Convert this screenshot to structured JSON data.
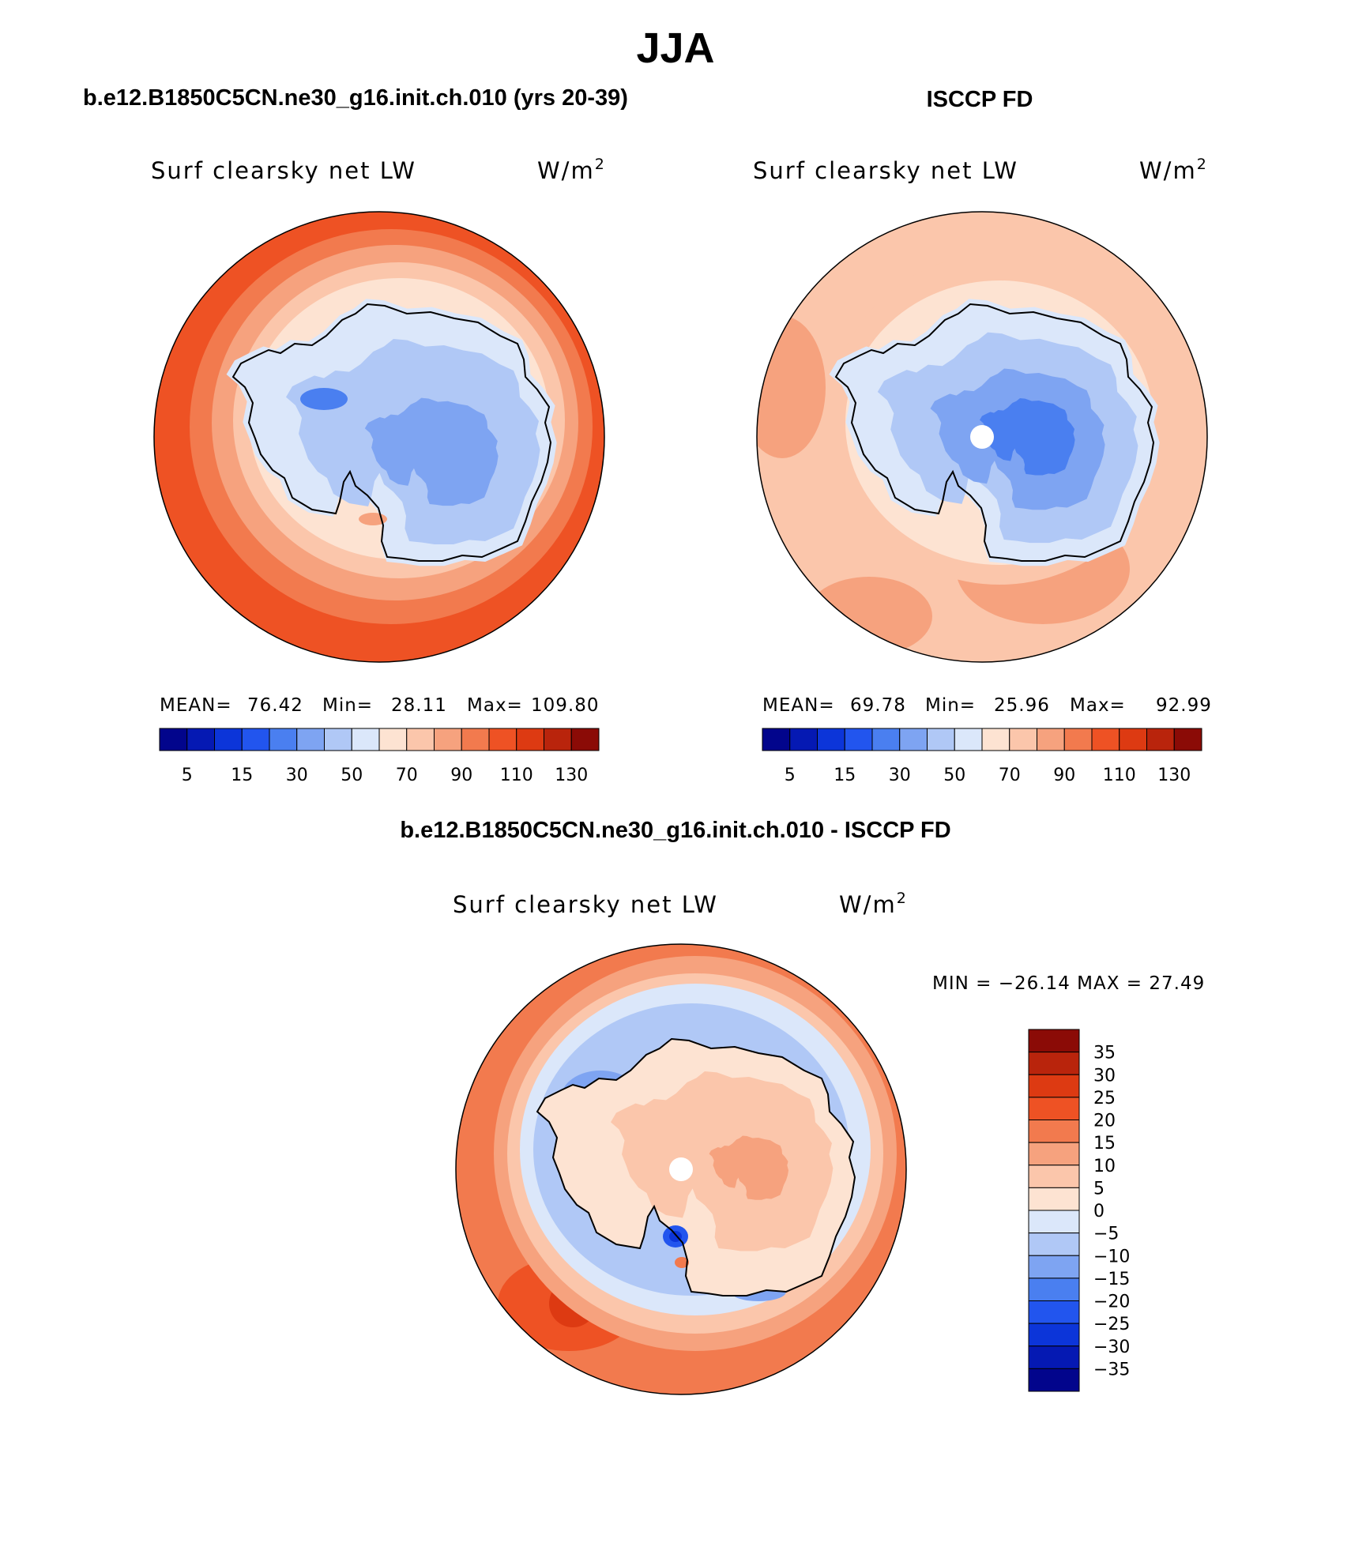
{
  "figure": {
    "season_title": "JJA",
    "panels": [
      {
        "id": "model",
        "case_title": "b.e12.B1850C5CN.ne30_g16.init.ch.010 (yrs 20-39)",
        "variable": "Surf clearsky net LW",
        "units": "W/m",
        "units_exponent": "2",
        "stats": {
          "mean_label": "MEAN=",
          "mean": "76.42",
          "min_label": "Min=",
          "min": "28.11",
          "max_label": "Max=",
          "max": "109.80"
        }
      },
      {
        "id": "obs",
        "case_title": "ISCCP FD",
        "variable": "Surf clearsky net LW",
        "units": "W/m",
        "units_exponent": "2",
        "stats": {
          "mean_label": "MEAN=",
          "mean": "69.78",
          "min_label": "Min=",
          "min": "25.96",
          "max_label": "Max=",
          "max": "92.99"
        }
      },
      {
        "id": "diff",
        "case_title": "b.e12.B1850C5CN.ne30_g16.init.ch.010 - ISCCP FD",
        "variable": "Surf clearsky net LW",
        "units": "W/m",
        "units_exponent": "2",
        "stats_line": "MIN = −26.14 MAX =  27.49"
      }
    ],
    "abs_colorbar": {
      "colors": [
        "#02058c",
        "#0519b3",
        "#0c35d9",
        "#2255ee",
        "#4a7ff0",
        "#7ea4f2",
        "#b0c8f6",
        "#dbe7fa",
        "#fde3d2",
        "#fbc6ab",
        "#f6a27e",
        "#f27a4e",
        "#ee5224",
        "#dd3a12",
        "#b9240c",
        "#8b0b06"
      ],
      "labels": [
        "5",
        "15",
        "30",
        "50",
        "70",
        "90",
        "110",
        "130"
      ]
    },
    "diff_colorbar": {
      "colors": [
        "#02058c",
        "#0519b3",
        "#0c35d9",
        "#2255ee",
        "#4a7ff0",
        "#7ea4f2",
        "#b0c8f6",
        "#dbe7fa",
        "#fde3d2",
        "#fbc6ab",
        "#f6a27e",
        "#f27a4e",
        "#ee5224",
        "#dd3a12",
        "#b9240c",
        "#8b0b06"
      ],
      "labels": [
        "35",
        "30",
        "25",
        "20",
        "15",
        "10",
        "5",
        "0",
        "−5",
        "−10",
        "−15",
        "−20",
        "−25",
        "−30",
        "−35"
      ]
    }
  }
}
